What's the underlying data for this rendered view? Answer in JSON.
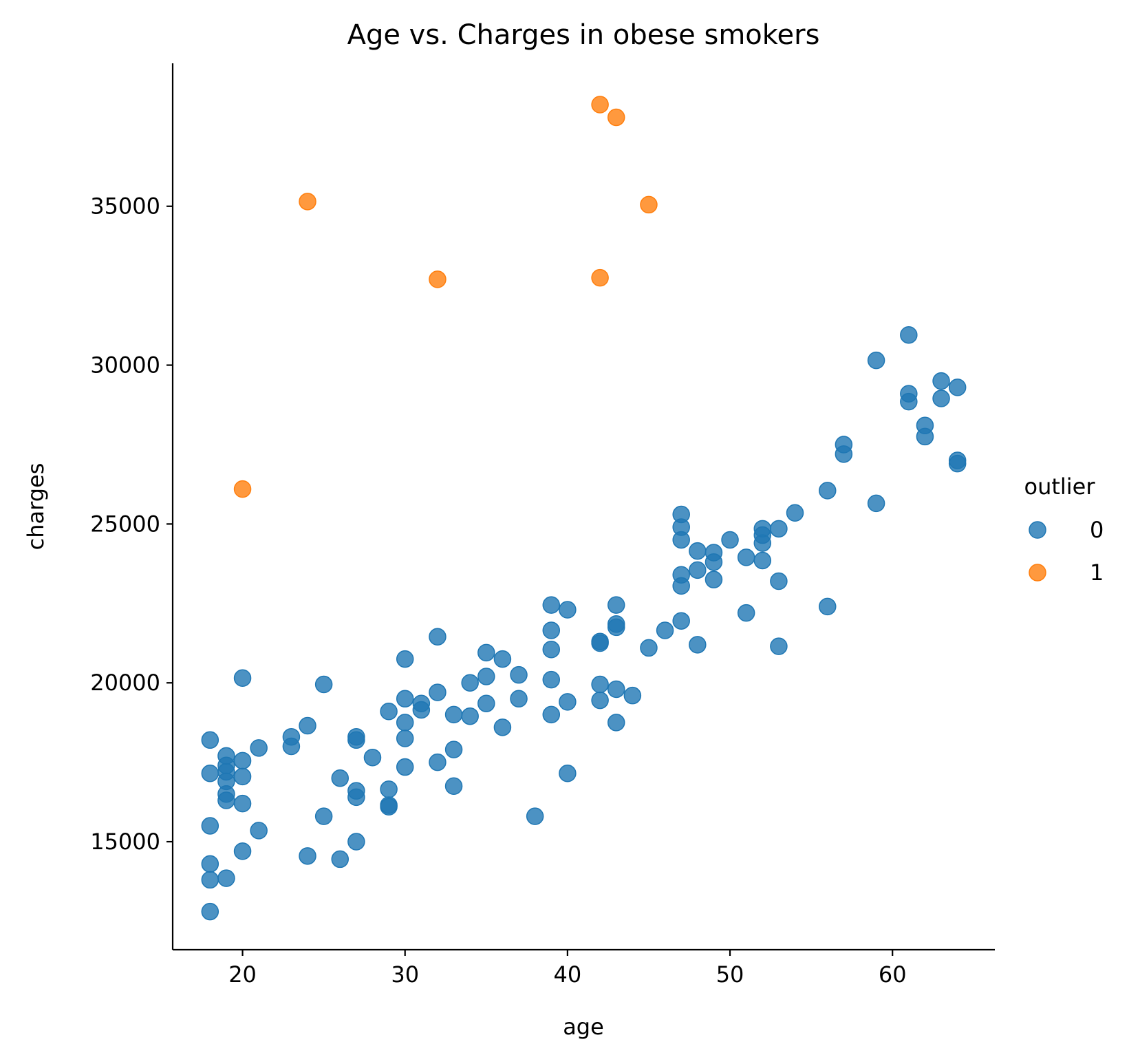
{
  "chart_data": {
    "type": "scatter",
    "title": "Age vs. Charges in obese smokers",
    "xlabel": "age",
    "ylabel": "charges",
    "xlim": [
      15.7,
      66.3
    ],
    "ylim": [
      11600,
      39500
    ],
    "xticks": [
      20,
      30,
      40,
      50,
      60
    ],
    "yticks": [
      15000,
      20000,
      25000,
      30000,
      35000
    ],
    "grid": false,
    "legend": {
      "title": "outlier",
      "placement": "right",
      "entries": [
        {
          "label": "0",
          "color": "#1f77b4"
        },
        {
          "label": "1",
          "color": "#ff7f0e"
        }
      ]
    },
    "series": [
      {
        "name": "0",
        "color": "#1f77b4",
        "points": [
          [
            18,
            18200
          ],
          [
            18,
            17150
          ],
          [
            18,
            15500
          ],
          [
            18,
            14300
          ],
          [
            18,
            13800
          ],
          [
            18,
            12800
          ],
          [
            19,
            17700
          ],
          [
            19,
            17400
          ],
          [
            19,
            17200
          ],
          [
            19,
            16900
          ],
          [
            19,
            16500
          ],
          [
            19,
            16300
          ],
          [
            19,
            13850
          ],
          [
            20,
            20150
          ],
          [
            20,
            17550
          ],
          [
            20,
            17050
          ],
          [
            20,
            16200
          ],
          [
            20,
            14700
          ],
          [
            21,
            17950
          ],
          [
            21,
            15350
          ],
          [
            23,
            18300
          ],
          [
            23,
            18000
          ],
          [
            24,
            18650
          ],
          [
            24,
            14550
          ],
          [
            25,
            19950
          ],
          [
            25,
            15800
          ],
          [
            26,
            17000
          ],
          [
            26,
            14450
          ],
          [
            27,
            18300
          ],
          [
            27,
            18200
          ],
          [
            27,
            16600
          ],
          [
            27,
            16400
          ],
          [
            27,
            15000
          ],
          [
            28,
            17650
          ],
          [
            29,
            19100
          ],
          [
            29,
            16650
          ],
          [
            29,
            16150
          ],
          [
            29,
            16100
          ],
          [
            30,
            20750
          ],
          [
            30,
            19500
          ],
          [
            30,
            18750
          ],
          [
            30,
            18250
          ],
          [
            30,
            17350
          ],
          [
            31,
            19350
          ],
          [
            31,
            19150
          ],
          [
            32,
            21450
          ],
          [
            32,
            19700
          ],
          [
            32,
            17500
          ],
          [
            33,
            19000
          ],
          [
            33,
            17900
          ],
          [
            33,
            16750
          ],
          [
            34,
            20000
          ],
          [
            34,
            18950
          ],
          [
            35,
            20950
          ],
          [
            35,
            20200
          ],
          [
            35,
            19350
          ],
          [
            36,
            20750
          ],
          [
            36,
            18600
          ],
          [
            37,
            20250
          ],
          [
            37,
            19500
          ],
          [
            38,
            15800
          ],
          [
            39,
            22450
          ],
          [
            39,
            21650
          ],
          [
            39,
            21050
          ],
          [
            39,
            20100
          ],
          [
            39,
            19000
          ],
          [
            40,
            22300
          ],
          [
            40,
            19400
          ],
          [
            40,
            17150
          ],
          [
            42,
            21300
          ],
          [
            42,
            21250
          ],
          [
            42,
            19950
          ],
          [
            42,
            19450
          ],
          [
            43,
            22450
          ],
          [
            43,
            21850
          ],
          [
            43,
            21750
          ],
          [
            43,
            19800
          ],
          [
            43,
            18750
          ],
          [
            44,
            19600
          ],
          [
            45,
            21100
          ],
          [
            46,
            21650
          ],
          [
            47,
            25300
          ],
          [
            47,
            24900
          ],
          [
            47,
            24500
          ],
          [
            47,
            23400
          ],
          [
            47,
            23050
          ],
          [
            47,
            21950
          ],
          [
            48,
            24150
          ],
          [
            48,
            23550
          ],
          [
            48,
            21200
          ],
          [
            49,
            24100
          ],
          [
            49,
            23800
          ],
          [
            49,
            23250
          ],
          [
            50,
            24500
          ],
          [
            51,
            23950
          ],
          [
            51,
            22200
          ],
          [
            52,
            24850
          ],
          [
            52,
            24650
          ],
          [
            52,
            24400
          ],
          [
            52,
            23850
          ],
          [
            53,
            24850
          ],
          [
            53,
            23200
          ],
          [
            53,
            21150
          ],
          [
            54,
            25350
          ],
          [
            56,
            26050
          ],
          [
            56,
            22400
          ],
          [
            57,
            27500
          ],
          [
            57,
            27200
          ],
          [
            59,
            30150
          ],
          [
            59,
            25650
          ],
          [
            61,
            30950
          ],
          [
            61,
            29100
          ],
          [
            61,
            28850
          ],
          [
            62,
            28100
          ],
          [
            62,
            27750
          ],
          [
            63,
            29500
          ],
          [
            63,
            28950
          ],
          [
            64,
            29300
          ],
          [
            64,
            27000
          ],
          [
            64,
            26900
          ]
        ]
      },
      {
        "name": "1",
        "color": "#ff7f0e",
        "points": [
          [
            20,
            26100
          ],
          [
            24,
            35150
          ],
          [
            32,
            32700
          ],
          [
            42,
            38200
          ],
          [
            42,
            32750
          ],
          [
            43,
            37800
          ],
          [
            45,
            35050
          ]
        ]
      }
    ]
  }
}
